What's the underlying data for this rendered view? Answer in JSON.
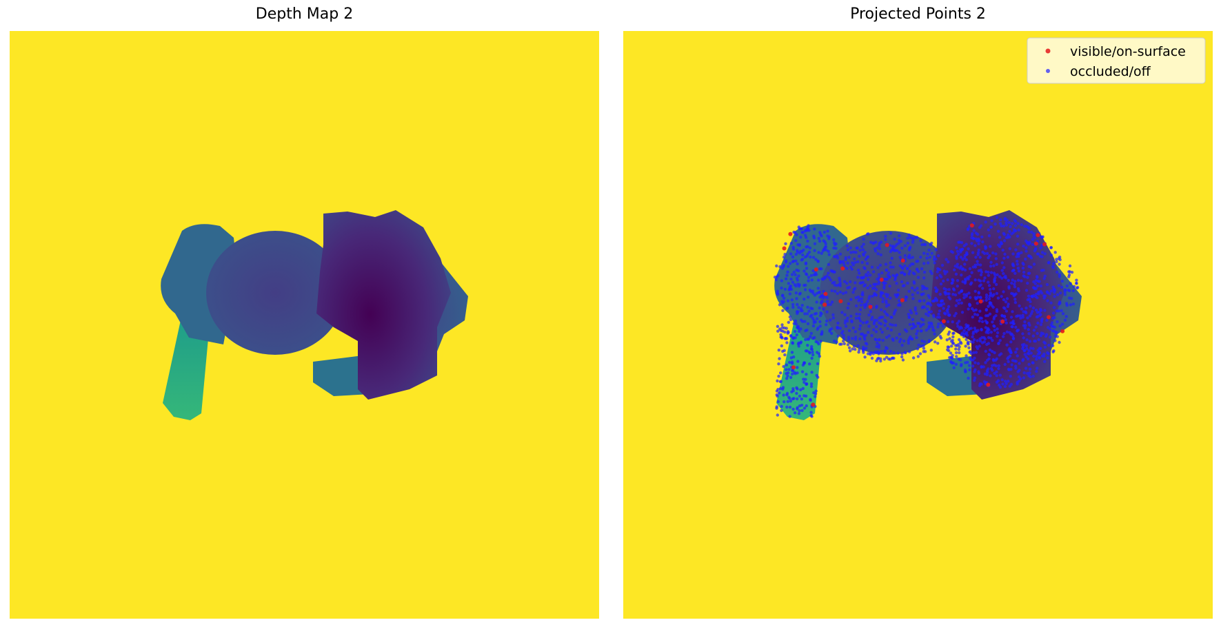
{
  "chart_data": [
    {
      "type": "heatmap",
      "title": "Depth Map 2",
      "colormap": "viridis",
      "background_color": "#fde725",
      "axes": "off"
    },
    {
      "type": "scatter",
      "title": "Projected Points 2",
      "background": "depth map (viridis)",
      "axes": "off",
      "legend": {
        "placement": "top-right",
        "entries": [
          {
            "label": "visible/on-surface",
            "color": "#e41a1c"
          },
          {
            "label": "occluded/off",
            "color": "#1f1fff"
          }
        ]
      },
      "series": [
        {
          "name": "visible/on-surface",
          "color": "#e41a1c",
          "point_count": 24
        },
        {
          "name": "occluded/off",
          "color": "#1f1fff",
          "point_count": 2000
        }
      ]
    }
  ]
}
